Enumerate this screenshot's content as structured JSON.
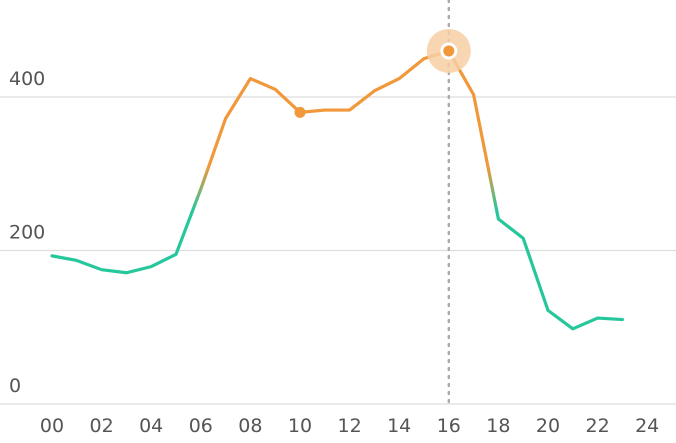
{
  "chart_data": {
    "type": "line",
    "title": "",
    "xlabel": "",
    "ylabel": "",
    "xlim": [
      0,
      24
    ],
    "ylim": [
      0,
      400
    ],
    "x_ticks": [
      "00",
      "02",
      "04",
      "06",
      "08",
      "10",
      "12",
      "14",
      "16",
      "18",
      "20",
      "22",
      "24"
    ],
    "y_ticks": [
      "0",
      "200",
      "400"
    ],
    "grid": "horizontal",
    "threshold": 280,
    "colors": {
      "above_threshold": "#f0983a",
      "below_threshold": "#25c79b",
      "grid": "#dddddd",
      "crosshair": "#aaaaaa",
      "highlight_halo": "#f7cfa3"
    },
    "series": [
      {
        "x": [
          0,
          1,
          2,
          3,
          4,
          5,
          6,
          7,
          8,
          9,
          10,
          11,
          12,
          13,
          14,
          15,
          16,
          17,
          18,
          19,
          20,
          21,
          22,
          23
        ],
        "values": [
          193,
          187,
          175,
          171,
          179,
          195,
          280,
          372,
          424,
          410,
          380,
          383,
          383,
          408,
          424,
          450,
          460,
          403,
          241,
          216,
          122,
          98,
          112,
          110
        ]
      }
    ],
    "markers": [
      {
        "x": 10,
        "y": 380,
        "style": "dot"
      },
      {
        "x": 16,
        "y": 460,
        "style": "halo"
      }
    ],
    "crosshair_x": 16
  }
}
